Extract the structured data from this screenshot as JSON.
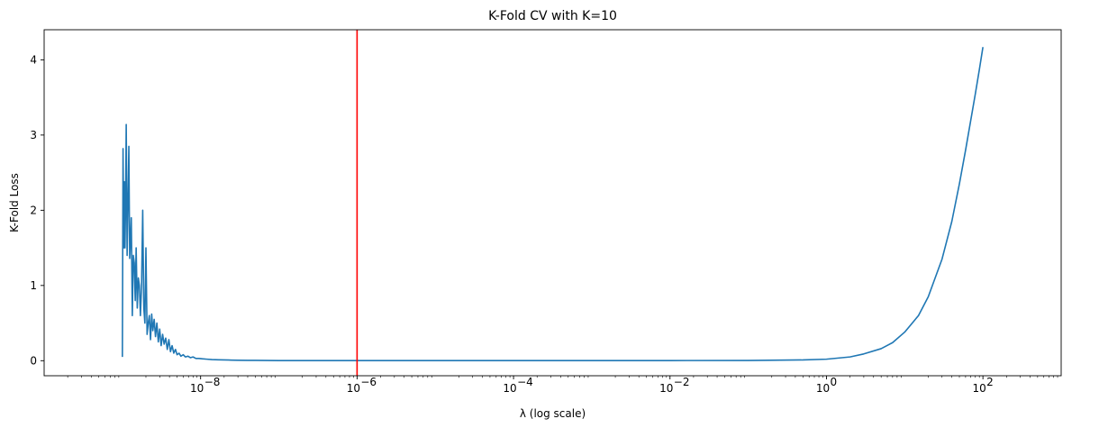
{
  "chart_data": {
    "type": "line",
    "title": "K-Fold CV with K=10",
    "xlabel": "λ (log scale)",
    "ylabel": "K-Fold Loss",
    "xscale": "log",
    "xlim": [
      1e-10,
      1000
    ],
    "ylim": [
      -0.2,
      4.4
    ],
    "x_ticks": [
      {
        "value": 1e-08,
        "base": "10",
        "exp": "−8"
      },
      {
        "value": 1e-06,
        "base": "10",
        "exp": "−6"
      },
      {
        "value": 0.0001,
        "base": "10",
        "exp": "−4"
      },
      {
        "value": 0.01,
        "base": "10",
        "exp": "−2"
      },
      {
        "value": 1,
        "base": "10",
        "exp": "0"
      },
      {
        "value": 100,
        "base": "10",
        "exp": "2"
      }
    ],
    "y_ticks": [
      0,
      1,
      2,
      3,
      4
    ],
    "grid": false,
    "line_color": "#1f77b4",
    "vline": {
      "x": 1e-06,
      "color": "#ff0000"
    },
    "series": [
      {
        "x": [
          1e-09,
          1.02e-09,
          1.04e-09,
          1.06e-09,
          1.08e-09,
          1.1e-09,
          1.12e-09,
          1.15e-09,
          1.18e-09,
          1.21e-09,
          1.24e-09,
          1.27e-09,
          1.3e-09,
          1.34e-09,
          1.38e-09,
          1.42e-09,
          1.46e-09,
          1.5e-09,
          1.55e-09,
          1.6e-09,
          1.65e-09,
          1.7e-09,
          1.76e-09,
          1.82e-09,
          1.88e-09,
          1.94e-09,
          2e-09,
          2.07e-09,
          2.14e-09,
          2.21e-09,
          2.29e-09,
          2.37e-09,
          2.45e-09,
          2.55e-09,
          2.65e-09,
          2.76e-09,
          2.88e-09,
          3e-09,
          3.13e-09,
          3.27e-09,
          3.42e-09,
          3.58e-09,
          3.75e-09,
          3.93e-09,
          4.12e-09,
          4.32e-09,
          4.54e-09,
          4.77e-09,
          5e-09,
          5.3e-09,
          5.6e-09,
          6e-09,
          6.4e-09,
          6.9e-09,
          7.4e-09,
          8e-09,
          8.7e-09,
          9.5e-09,
          1.05e-08,
          1.2e-08,
          1.4e-08,
          1.7e-08,
          2e-08,
          2.5e-08,
          3e-08,
          4e-08,
          5e-08,
          7e-08,
          1e-07,
          1e-06,
          1e-05,
          0.0001,
          0.001,
          0.01,
          0.1,
          0.5,
          1.0,
          2.0,
          3.0,
          5.0,
          7.0,
          10.0,
          15.0,
          20.0,
          30.0,
          40.0,
          50.0,
          60.0,
          70.0,
          80.0,
          90.0,
          100.0
        ],
        "y": [
          0.05,
          2.82,
          1.5,
          2.38,
          1.5,
          2.1,
          3.14,
          1.4,
          2.1,
          2.85,
          1.36,
          1.6,
          1.9,
          0.6,
          1.4,
          1.3,
          0.8,
          1.5,
          0.7,
          1.1,
          1.0,
          0.6,
          1.0,
          2.0,
          0.7,
          0.5,
          1.5,
          0.35,
          0.5,
          0.6,
          0.28,
          0.62,
          0.4,
          0.55,
          0.32,
          0.5,
          0.25,
          0.42,
          0.2,
          0.35,
          0.22,
          0.3,
          0.15,
          0.28,
          0.12,
          0.2,
          0.1,
          0.15,
          0.08,
          0.1,
          0.06,
          0.08,
          0.05,
          0.06,
          0.04,
          0.05,
          0.03,
          0.03,
          0.025,
          0.02,
          0.015,
          0.012,
          0.01,
          0.008,
          0.006,
          0.005,
          0.004,
          0.003,
          0.002,
          0.001,
          0.001,
          0.001,
          0.001,
          0.002,
          0.003,
          0.01,
          0.02,
          0.05,
          0.09,
          0.16,
          0.24,
          0.38,
          0.6,
          0.85,
          1.35,
          1.85,
          2.35,
          2.8,
          3.2,
          3.55,
          3.87,
          4.17
        ]
      }
    ]
  }
}
